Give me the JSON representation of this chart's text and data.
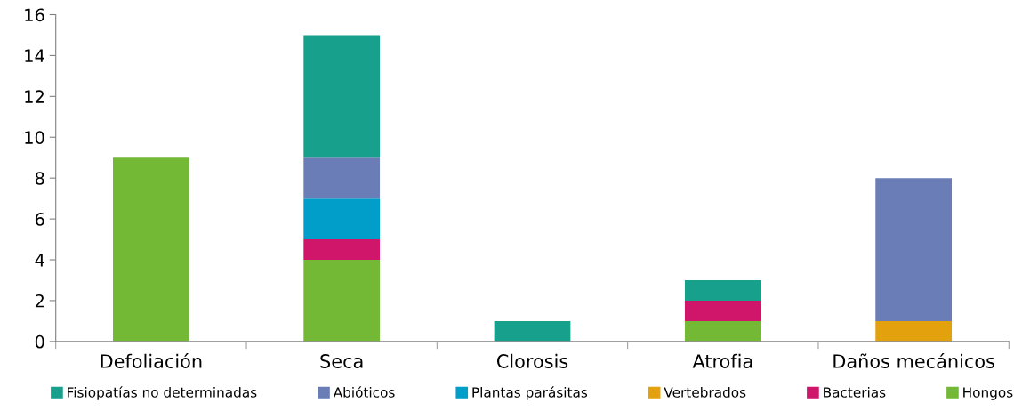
{
  "chart_data": {
    "type": "bar",
    "stacked": true,
    "categories": [
      "Defoliación",
      "Seca",
      "Clorosis",
      "Atrofia",
      "Daños mecánicos"
    ],
    "series": [
      {
        "name": "Hongos",
        "color": "#73b935",
        "values": [
          9,
          4,
          0,
          1,
          0
        ]
      },
      {
        "name": "Bacterias",
        "color": "#d0166b",
        "values": [
          0,
          1,
          0,
          1,
          0
        ]
      },
      {
        "name": "Vertebrados",
        "color": "#e3a20d",
        "values": [
          0,
          0,
          0,
          0,
          1
        ]
      },
      {
        "name": "Plantas parásitas",
        "color": "#009ec8",
        "values": [
          0,
          2,
          0,
          0,
          0
        ]
      },
      {
        "name": "Abióticos",
        "color": "#6a7db7",
        "values": [
          0,
          2,
          0,
          0,
          7
        ]
      },
      {
        "name": "Fisiopatías no determinadas",
        "color": "#17a08c",
        "values": [
          0,
          6,
          1,
          1,
          0
        ]
      }
    ],
    "ylim": [
      0,
      16
    ],
    "yticks": [
      0,
      2,
      4,
      6,
      8,
      10,
      12,
      14,
      16
    ],
    "grid": false,
    "legend": "bottom"
  }
}
